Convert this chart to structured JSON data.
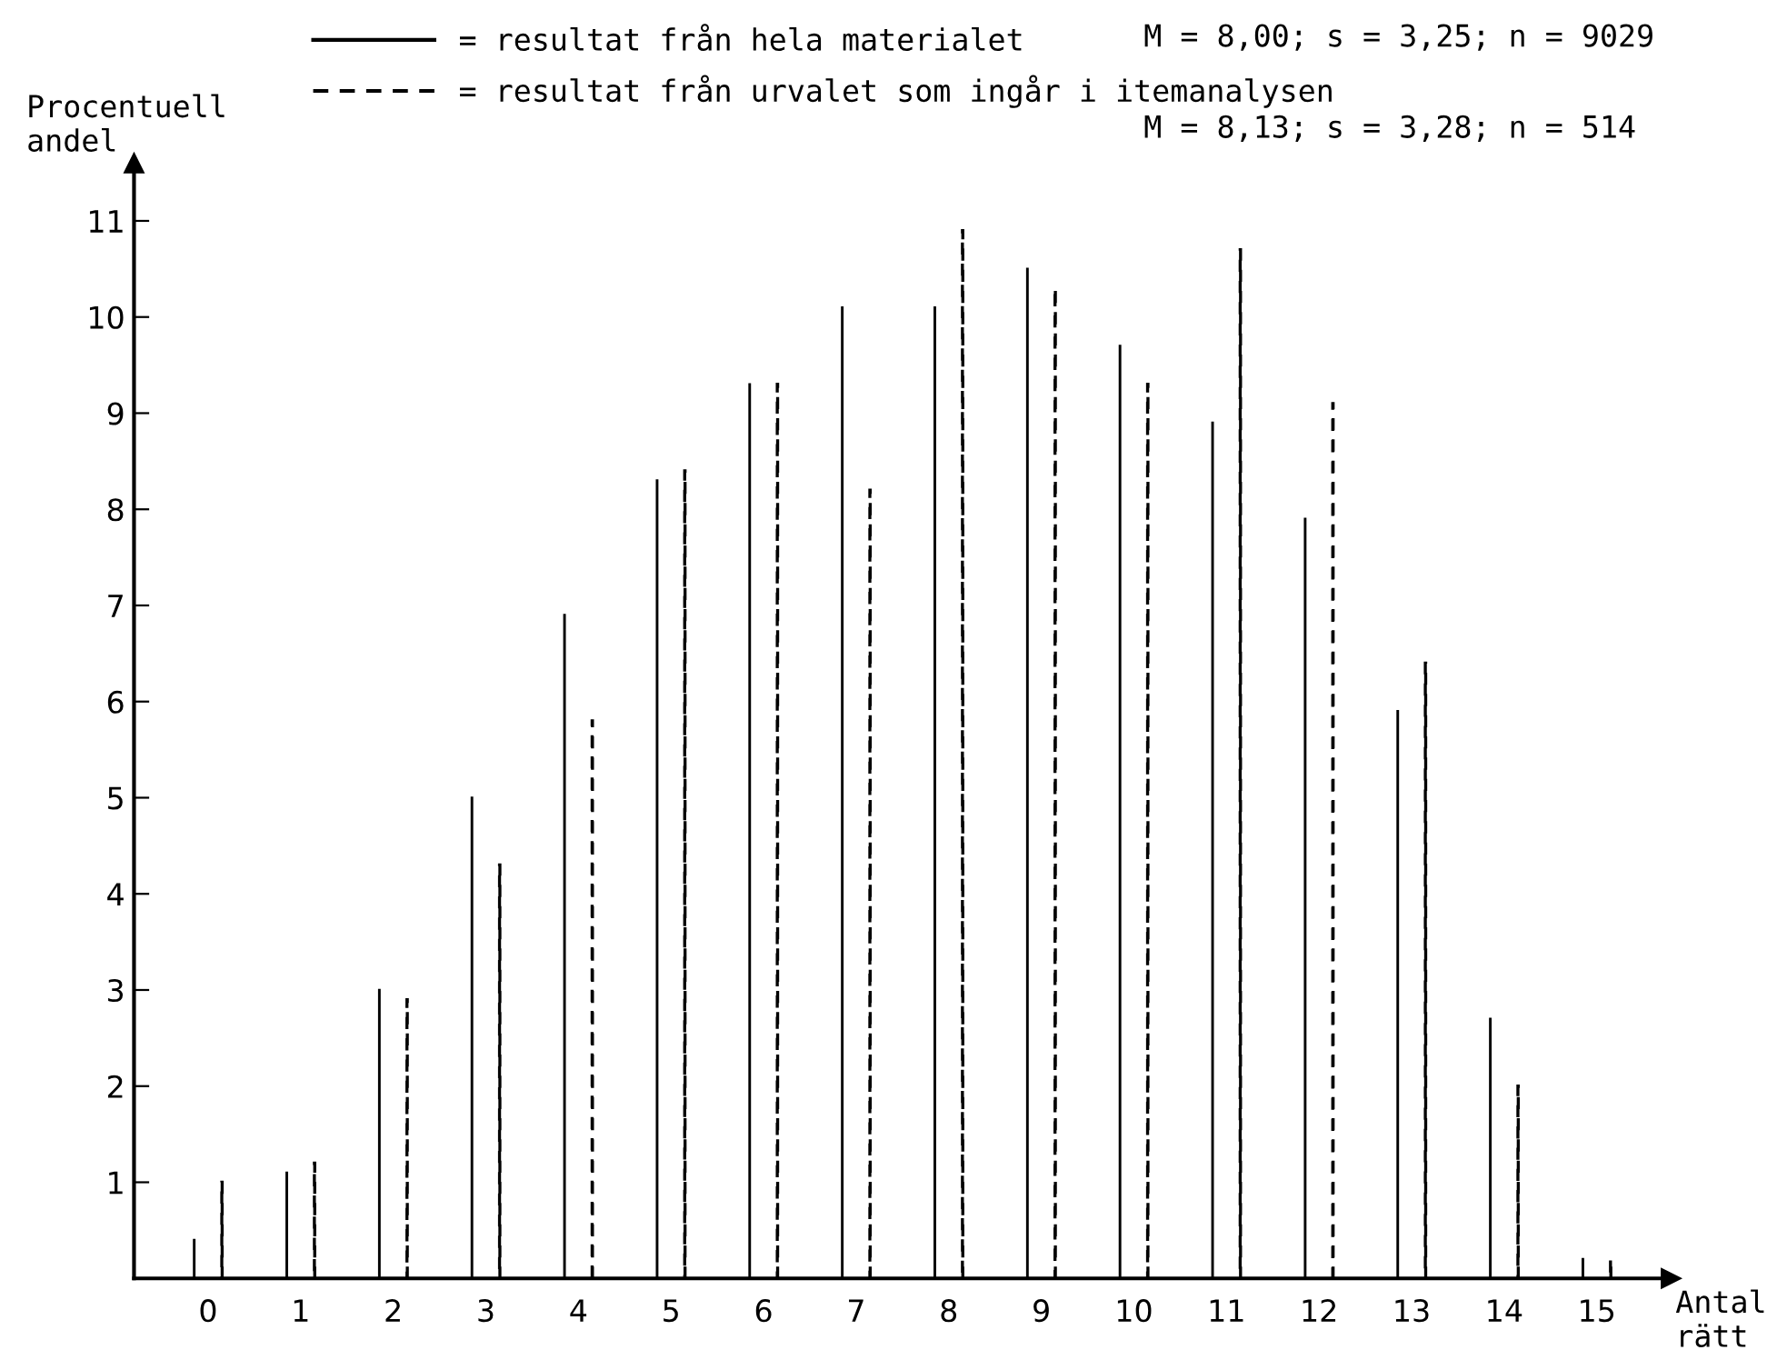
{
  "chart_data": {
    "type": "bar",
    "categories": [
      "0",
      "1",
      "2",
      "3",
      "4",
      "5",
      "6",
      "7",
      "8",
      "9",
      "10",
      "11",
      "12",
      "13",
      "14",
      "15"
    ],
    "series": [
      {
        "name": "= resultat från hela materialet",
        "color": "#000000",
        "line_style": "solid",
        "values": [
          0.4,
          1.1,
          3.0,
          5.0,
          6.9,
          8.3,
          9.3,
          10.1,
          10.1,
          10.5,
          9.7,
          8.9,
          7.9,
          5.9,
          2.7,
          0.2
        ]
      },
      {
        "name": "= resultat från urvalet som ingår i itemanalysen",
        "color": "#000000",
        "line_style": "dashed",
        "values": [
          1.0,
          1.2,
          2.9,
          4.3,
          5.8,
          8.4,
          9.3,
          8.2,
          10.9,
          10.3,
          9.3,
          10.7,
          9.1,
          6.4,
          2.0,
          0.2
        ]
      }
    ],
    "annotations": [
      "M = 8,00; s = 3,25; n = 9029",
      "M = 8,13; s = 3,28; n = 514"
    ],
    "xlabel": "Antal\nrätt",
    "ylabel": "Procentuell\nandel",
    "ylim": [
      0,
      11.6
    ],
    "yticks": [
      1,
      2,
      3,
      4,
      5,
      6,
      7,
      8,
      9,
      10,
      11
    ],
    "legend": "top",
    "grid": false
  }
}
